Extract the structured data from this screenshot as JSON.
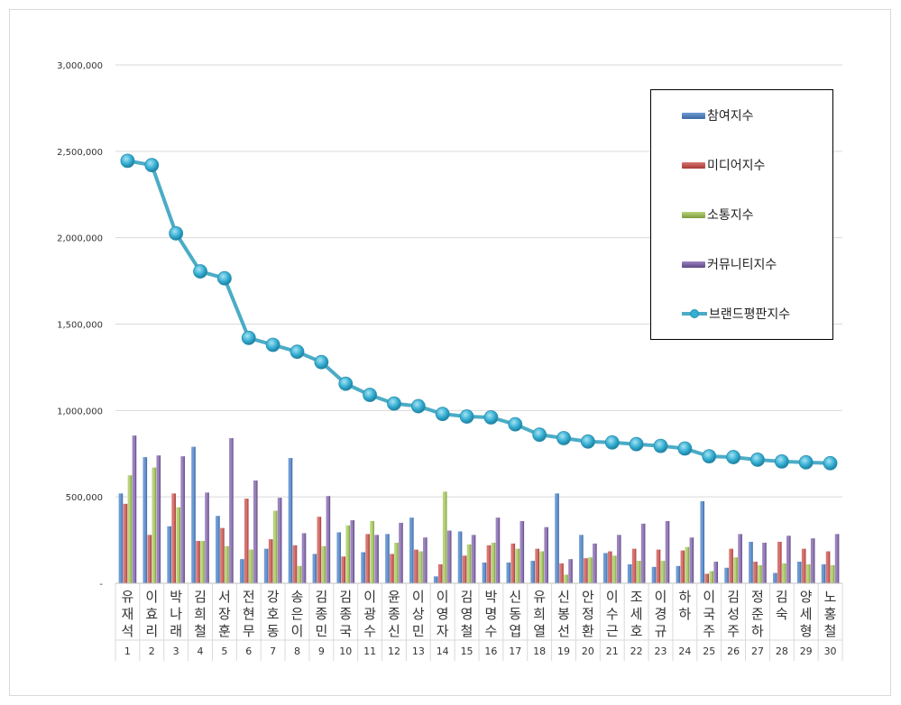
{
  "chart_data": {
    "type": "bar",
    "combo_line_series": "브랜드평판지수",
    "names": [
      "유재석",
      "이효리",
      "박나래",
      "김희철",
      "서장훈",
      "전현무",
      "강호동",
      "송은이",
      "김종민",
      "김종국",
      "이광수",
      "윤종신",
      "이상민",
      "이영자",
      "김영철",
      "박명수",
      "신동엽",
      "유희열",
      "신봉선",
      "안정환",
      "이수근",
      "조세호",
      "이경규",
      "하하",
      "이국주",
      "김성주",
      "정준하",
      "김숙",
      "양세형",
      "노홍철"
    ],
    "ranks": [
      "1",
      "2",
      "3",
      "4",
      "5",
      "6",
      "7",
      "8",
      "9",
      "10",
      "11",
      "12",
      "13",
      "14",
      "15",
      "16",
      "17",
      "18",
      "19",
      "20",
      "21",
      "22",
      "23",
      "24",
      "25",
      "26",
      "27",
      "28",
      "29",
      "30"
    ],
    "y_ticks": [
      "-",
      "500,000",
      "1,000,000",
      "1,500,000",
      "2,000,000",
      "2,500,000",
      "3,000,000"
    ],
    "ylim": [
      0,
      3000000
    ],
    "grid": true,
    "legend_position": "right",
    "series": [
      {
        "name": "참여지수",
        "color": "#4f81bd",
        "values": [
          520000,
          730000,
          330000,
          790000,
          390000,
          140000,
          200000,
          725000,
          170000,
          295000,
          180000,
          285000,
          380000,
          40000,
          300000,
          120000,
          120000,
          130000,
          520000,
          280000,
          175000,
          110000,
          95000,
          100000,
          475000,
          90000,
          240000,
          60000,
          125000,
          110000
        ]
      },
      {
        "name": "미디어지수",
        "color": "#c0504d",
        "values": [
          460000,
          280000,
          520000,
          245000,
          320000,
          490000,
          255000,
          220000,
          385000,
          155000,
          285000,
          170000,
          195000,
          110000,
          160000,
          220000,
          230000,
          200000,
          115000,
          145000,
          185000,
          200000,
          195000,
          190000,
          55000,
          200000,
          125000,
          240000,
          200000,
          185000
        ]
      },
      {
        "name": "소통지수",
        "color": "#9bbb59",
        "values": [
          625000,
          670000,
          440000,
          245000,
          215000,
          195000,
          420000,
          100000,
          215000,
          335000,
          360000,
          235000,
          185000,
          530000,
          225000,
          235000,
          200000,
          185000,
          50000,
          150000,
          160000,
          130000,
          130000,
          210000,
          70000,
          150000,
          105000,
          115000,
          110000,
          105000
        ]
      },
      {
        "name": "커뮤니티지수",
        "color": "#8064a2",
        "values": [
          855000,
          740000,
          735000,
          525000,
          840000,
          595000,
          495000,
          290000,
          505000,
          365000,
          280000,
          350000,
          265000,
          305000,
          280000,
          380000,
          360000,
          325000,
          140000,
          230000,
          280000,
          345000,
          360000,
          265000,
          125000,
          285000,
          235000,
          275000,
          260000,
          285000
        ]
      },
      {
        "name": "브랜드평판지수",
        "color": "#4bacc6",
        "kind": "line",
        "values": [
          2445000,
          2420000,
          2025000,
          1805000,
          1765000,
          1420000,
          1380000,
          1340000,
          1280000,
          1155000,
          1090000,
          1040000,
          1025000,
          980000,
          965000,
          960000,
          920000,
          860000,
          840000,
          820000,
          815000,
          805000,
          795000,
          780000,
          735000,
          730000,
          715000,
          705000,
          700000,
          695000
        ]
      }
    ]
  }
}
